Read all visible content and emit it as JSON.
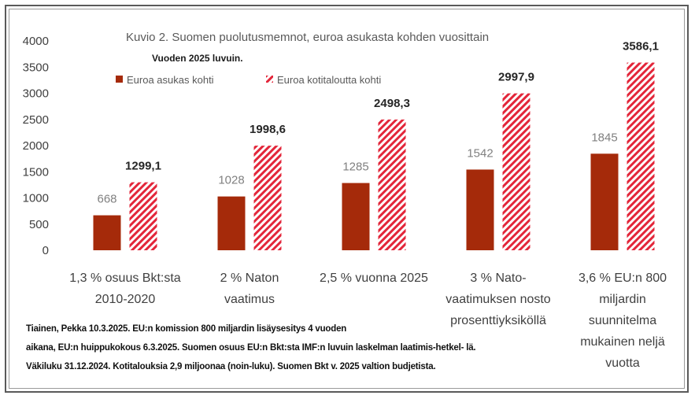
{
  "chart_data": {
    "type": "bar",
    "title": "Kuvio 2. Suomen puolutusmemnot, euroa asukasta kohden vuosittain",
    "subtitle": "Vuoden 2025 luvuin.",
    "categories": [
      [
        "1,3 % osuus Bkt:sta",
        "2010-2020"
      ],
      [
        "2 % Naton",
        "vaatimus"
      ],
      [
        "2,5 % vuonna 2025"
      ],
      [
        "3 % Nato-",
        "vaatimuksen nosto",
        "prosenttiyksiköllä"
      ],
      [
        "3,6 % EU:n 800",
        "miljardin",
        "suunnitelma",
        "mukainen neljä",
        "vuotta"
      ]
    ],
    "series": [
      {
        "name": "Euroa asukas kohti",
        "values": [
          668,
          1028,
          1285,
          1542,
          1845
        ],
        "labels": [
          "668",
          "1028",
          "1285",
          "1542",
          "1845"
        ],
        "color": "#a52a0a",
        "pattern": "solid"
      },
      {
        "name": "Euroa kotitaloutta kohti",
        "values": [
          1299.1,
          1998.6,
          2498.3,
          2997.9,
          3586.1
        ],
        "labels": [
          "1299,1",
          "1998,6",
          "2498,3",
          "2997,9",
          "3586,1"
        ],
        "color": "#e3263a",
        "pattern": "diagonal-hatch"
      }
    ],
    "ylim": [
      0,
      4000
    ],
    "yticks": [
      "0",
      "500",
      "1000",
      "1500",
      "2000",
      "2500",
      "3000",
      "3500",
      "4000"
    ],
    "ytick_values": [
      0,
      500,
      1000,
      1500,
      2000,
      2500,
      3000,
      3500,
      4000
    ],
    "grid": false,
    "legend_position": "top-left"
  },
  "note": {
    "lines": [
      "Tiainen, Pekka 10.3.2025. EU:n komission 800 miljardin lisäysesitys 4 vuoden",
      "aikana, EU:n huippukokous 6.3.2025. Suomen osuus EU:n Bkt:sta IMF:n luvuin laskelman laatimis-hetkel- lä.",
      "Väkiluku 31.12.2024. Kotitalouksia 2,9 miljoonaa (noin-luku). Suomen Bkt v. 2025 valtion budjetista."
    ]
  }
}
